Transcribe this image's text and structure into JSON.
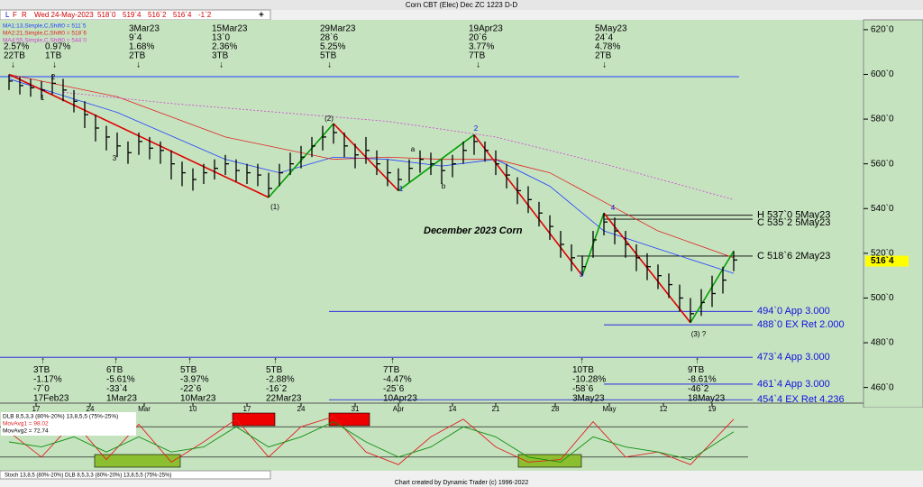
{
  "window_title": "Corn CBT (Elec) Dec ZC 1223 D-D",
  "toolbar": {
    "buttons": [
      "L",
      "F",
      "R"
    ],
    "quote": [
      "Wed 24-May-2023",
      "518`0",
      "519`4",
      "516`2",
      "516`4",
      "-1`2"
    ],
    "add": "+"
  },
  "chart_data": {
    "type": "ohlc",
    "title": "December 2023 Corn",
    "highs": [
      600,
      599,
      598,
      597,
      600,
      598,
      593,
      588,
      582,
      577,
      574,
      570,
      574,
      572,
      570,
      566,
      561,
      558,
      560,
      562,
      564,
      562,
      560,
      560,
      556,
      560,
      565,
      568,
      572,
      577,
      578,
      574,
      569,
      572,
      566,
      562,
      558,
      562,
      566,
      565,
      562,
      564,
      570,
      573,
      570,
      566,
      560,
      554,
      550,
      543,
      537,
      530,
      524,
      519,
      530,
      538,
      536,
      530,
      524,
      520,
      515,
      511,
      506,
      500,
      504,
      510,
      514,
      521
    ],
    "lows": [
      593,
      591,
      590,
      589,
      591,
      588,
      583,
      576,
      570,
      566,
      563,
      560,
      564,
      562,
      560,
      553,
      550,
      548,
      551,
      553,
      555,
      552,
      551,
      550,
      545,
      550,
      555,
      558,
      563,
      566,
      569,
      563,
      558,
      560,
      555,
      550,
      548,
      552,
      556,
      555,
      551,
      554,
      560,
      564,
      561,
      555,
      549,
      542,
      538,
      532,
      526,
      518,
      512,
      510,
      518,
      528,
      524,
      518,
      512,
      508,
      504,
      500,
      494,
      489,
      492,
      496,
      502,
      512
    ],
    "closes": [
      597,
      595,
      594,
      593,
      596,
      593,
      588,
      582,
      576,
      572,
      568,
      565,
      570,
      567,
      566,
      560,
      556,
      553,
      556,
      558,
      560,
      557,
      556,
      555,
      549,
      556,
      560,
      563,
      568,
      572,
      574,
      568,
      564,
      566,
      560,
      556,
      553,
      558,
      562,
      560,
      557,
      560,
      566,
      570,
      566,
      560,
      555,
      548,
      544,
      538,
      532,
      524,
      518,
      514,
      526,
      534,
      530,
      524,
      518,
      514,
      510,
      506,
      500,
      493,
      498,
      502,
      508,
      517
    ],
    "color": "#000000",
    "ylim": [
      453,
      626
    ],
    "yticks": [
      {
        "value": 460,
        "label": "460`0"
      },
      {
        "value": 480,
        "label": "480`0"
      },
      {
        "value": 500,
        "label": "500`0"
      },
      {
        "value": 520,
        "label": "520`0"
      },
      {
        "value": 540,
        "label": "540`0"
      },
      {
        "value": 560,
        "label": "560`0"
      },
      {
        "value": 580,
        "label": "580`0"
      },
      {
        "value": 600,
        "label": "600`0"
      },
      {
        "value": 620,
        "label": "620`0"
      }
    ],
    "x_labels": [
      "17",
      "24",
      "Mar",
      "10",
      "17",
      "24",
      "31",
      "Apr",
      "14",
      "21",
      "28",
      "May",
      "12",
      "19"
    ],
    "x_label_index": [
      2.5,
      7.5,
      12.5,
      17,
      22,
      27,
      32,
      36,
      41,
      45,
      50.5,
      55.5,
      60.5,
      65
    ],
    "moving_averages": [
      {
        "name": "MA1:13,Simple,C,Shift0 = 511`5",
        "color": "#1f3fff",
        "dash": false,
        "x": [
          0,
          10,
          20,
          25,
          30,
          35,
          40,
          45,
          50,
          55,
          60,
          67
        ],
        "values": [
          598,
          583,
          562,
          556,
          563,
          562,
          559,
          562,
          550,
          530,
          522,
          511
        ]
      },
      {
        "name": "MA2:21,Simple,C,Shift0 = 518`6",
        "color": "#e02020",
        "dash": false,
        "x": [
          0,
          10,
          20,
          30,
          35,
          40,
          45,
          50,
          55,
          60,
          67
        ],
        "values": [
          600,
          590,
          572,
          562,
          563,
          562,
          562,
          556,
          543,
          530,
          518
        ]
      },
      {
        "name": "MA4:55,Simple,C,Shift0 = 544`0",
        "color": "#d040d0",
        "dash": true,
        "x": [
          5,
          15,
          25,
          35,
          45,
          55,
          67
        ],
        "values": [
          592,
          587,
          583,
          579,
          572,
          560,
          544
        ]
      }
    ],
    "swing_line": {
      "color": "#1f3fff",
      "value": 599
    },
    "pivots": {
      "index": [
        0,
        24,
        30,
        36,
        43,
        53,
        55,
        63,
        67
      ],
      "down_color": "#e00000",
      "up_color": "#00a000"
    },
    "levels": [
      {
        "label": "H 537`0 5May23",
        "value": 537,
        "color": "#000000"
      },
      {
        "label": "C 535`2 5May23",
        "value": 535.25,
        "color": "#000000"
      },
      {
        "label": "C 518`6 2May23",
        "value": 518.75,
        "color": "#000000"
      },
      {
        "label": "494`0 App 3.000",
        "value": 494,
        "color": "#1010e0"
      },
      {
        "label": "488`0 EX Ret 2.000",
        "value": 488,
        "color": "#1010e0"
      },
      {
        "label": "473`4 App 3.000",
        "value": 473.5,
        "color": "#1010e0"
      },
      {
        "label": "461`4 App 3.000",
        "value": 461.5,
        "color": "#1010e0"
      },
      {
        "label": "454`4 EX Ret 4.236",
        "value": 454.5,
        "color": "#1010e0"
      }
    ],
    "last_price": {
      "label": "516`4",
      "value": 516.5
    },
    "wave_labels": [
      "1",
      "2",
      "3",
      "(1)",
      "(2)",
      "(3) ?",
      "1",
      "2",
      "3",
      "4",
      "a",
      "b"
    ],
    "top_annotations": [
      [
        "2.57%",
        "22TB",
        "↓"
      ],
      [
        "0.97%",
        "1TB",
        "↓"
      ],
      [
        "3Mar23",
        "9`4",
        "1.68%",
        "2TB",
        "↓"
      ],
      [
        "15Mar23",
        "13`0",
        "2.36%",
        "3TB",
        "↓"
      ],
      [
        "29Mar23",
        "28`6",
        "5.25%",
        "5TB",
        "↓"
      ],
      [
        "19Apr23",
        "20`6",
        "3.77%",
        "7TB",
        "↓"
      ],
      [
        "5May23",
        "24`4",
        "4.78%",
        "2TB",
        "↓"
      ]
    ],
    "bottom_annotations": [
      [
        "↑",
        "3TB",
        "-1.17%",
        "-7`0",
        "17Feb23"
      ],
      [
        "↑",
        "6TB",
        "-5.61%",
        "-33`4",
        "1Mar23"
      ],
      [
        "↑",
        "5TB",
        "-3.97%",
        "-22`6",
        "10Mar23"
      ],
      [
        "↑",
        "5TB",
        "-2.88%",
        "-16`2",
        "22Mar23"
      ],
      [
        "↑",
        "7TB",
        "-4.47%",
        "-25`6",
        "10Apr23"
      ],
      [
        "↑",
        "10TB",
        "-10.28%",
        "-58`6",
        "3May23"
      ],
      [
        "↑",
        "9TB",
        "-8.61%",
        "-46`2",
        "18May23"
      ]
    ]
  },
  "oscillator": {
    "legend": [
      "DLB 8,5,3,3 (80%-20%) 13,8,5,5 (75%-25%)",
      "MovAvg1 = 98.02",
      "MovAvg2 = 72.74"
    ],
    "ylim": [
      0,
      100
    ],
    "bands": [
      80,
      20
    ],
    "series": [
      {
        "name": "MovAvg1",
        "color": "#e02020",
        "x": [
          0,
          3,
          6,
          9,
          12,
          15,
          18,
          21,
          24,
          27,
          30,
          33,
          36,
          39,
          42,
          45,
          48,
          51,
          54,
          57,
          60,
          63,
          67
        ],
        "values": [
          70,
          20,
          90,
          15,
          85,
          10,
          50,
          95,
          20,
          80,
          100,
          30,
          5,
          60,
          95,
          40,
          10,
          15,
          90,
          20,
          30,
          5,
          95
        ]
      },
      {
        "name": "MovAvg2",
        "color": "#109010",
        "x": [
          0,
          3,
          6,
          9,
          12,
          15,
          18,
          21,
          24,
          27,
          30,
          33,
          36,
          39,
          42,
          45,
          48,
          51,
          54,
          57,
          60,
          63,
          67
        ],
        "values": [
          50,
          40,
          60,
          30,
          60,
          30,
          40,
          80,
          40,
          60,
          90,
          50,
          20,
          40,
          80,
          60,
          20,
          10,
          60,
          40,
          30,
          15,
          70
        ]
      }
    ]
  },
  "tabs": [
    "Stoch 13,8,5 (80%-20%)",
    "DLB 8,5,3,3 (80%-20%) 13,8,5,5 (75%-25%)"
  ],
  "footer": "Chart created by Dynamic Trader  (c) 1996-2022"
}
